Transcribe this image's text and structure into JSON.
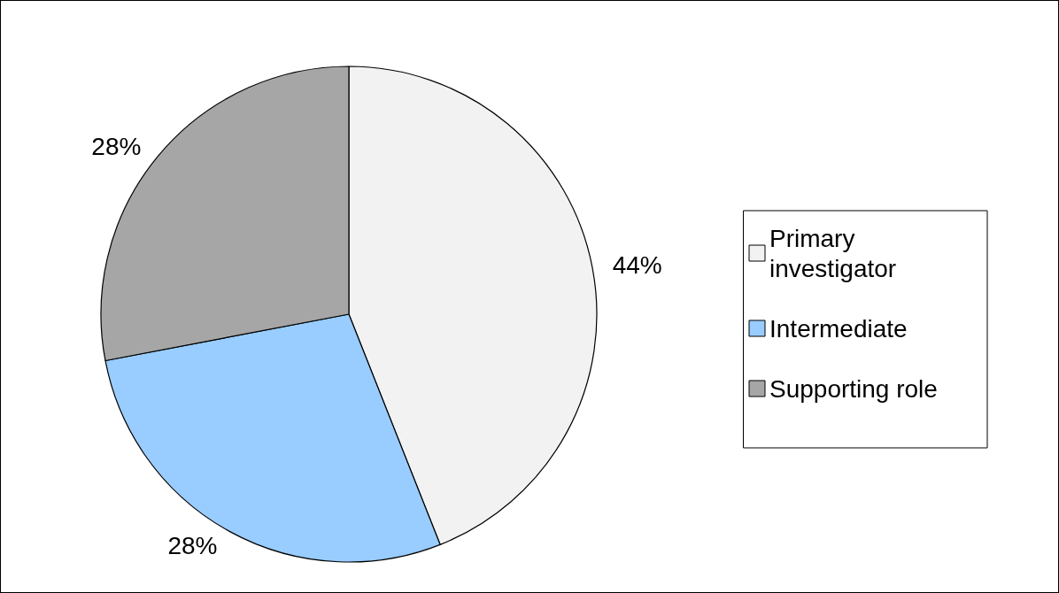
{
  "chart_data": {
    "type": "pie",
    "categories": [
      "Primary investigator",
      "Intermediate",
      "Supporting role"
    ],
    "values": [
      44,
      28,
      28
    ],
    "colors": [
      "#f2f2f2",
      "#99ccff",
      "#a6a6a6"
    ],
    "value_labels": [
      "44%",
      "28%",
      "28%"
    ],
    "legend": "right"
  }
}
